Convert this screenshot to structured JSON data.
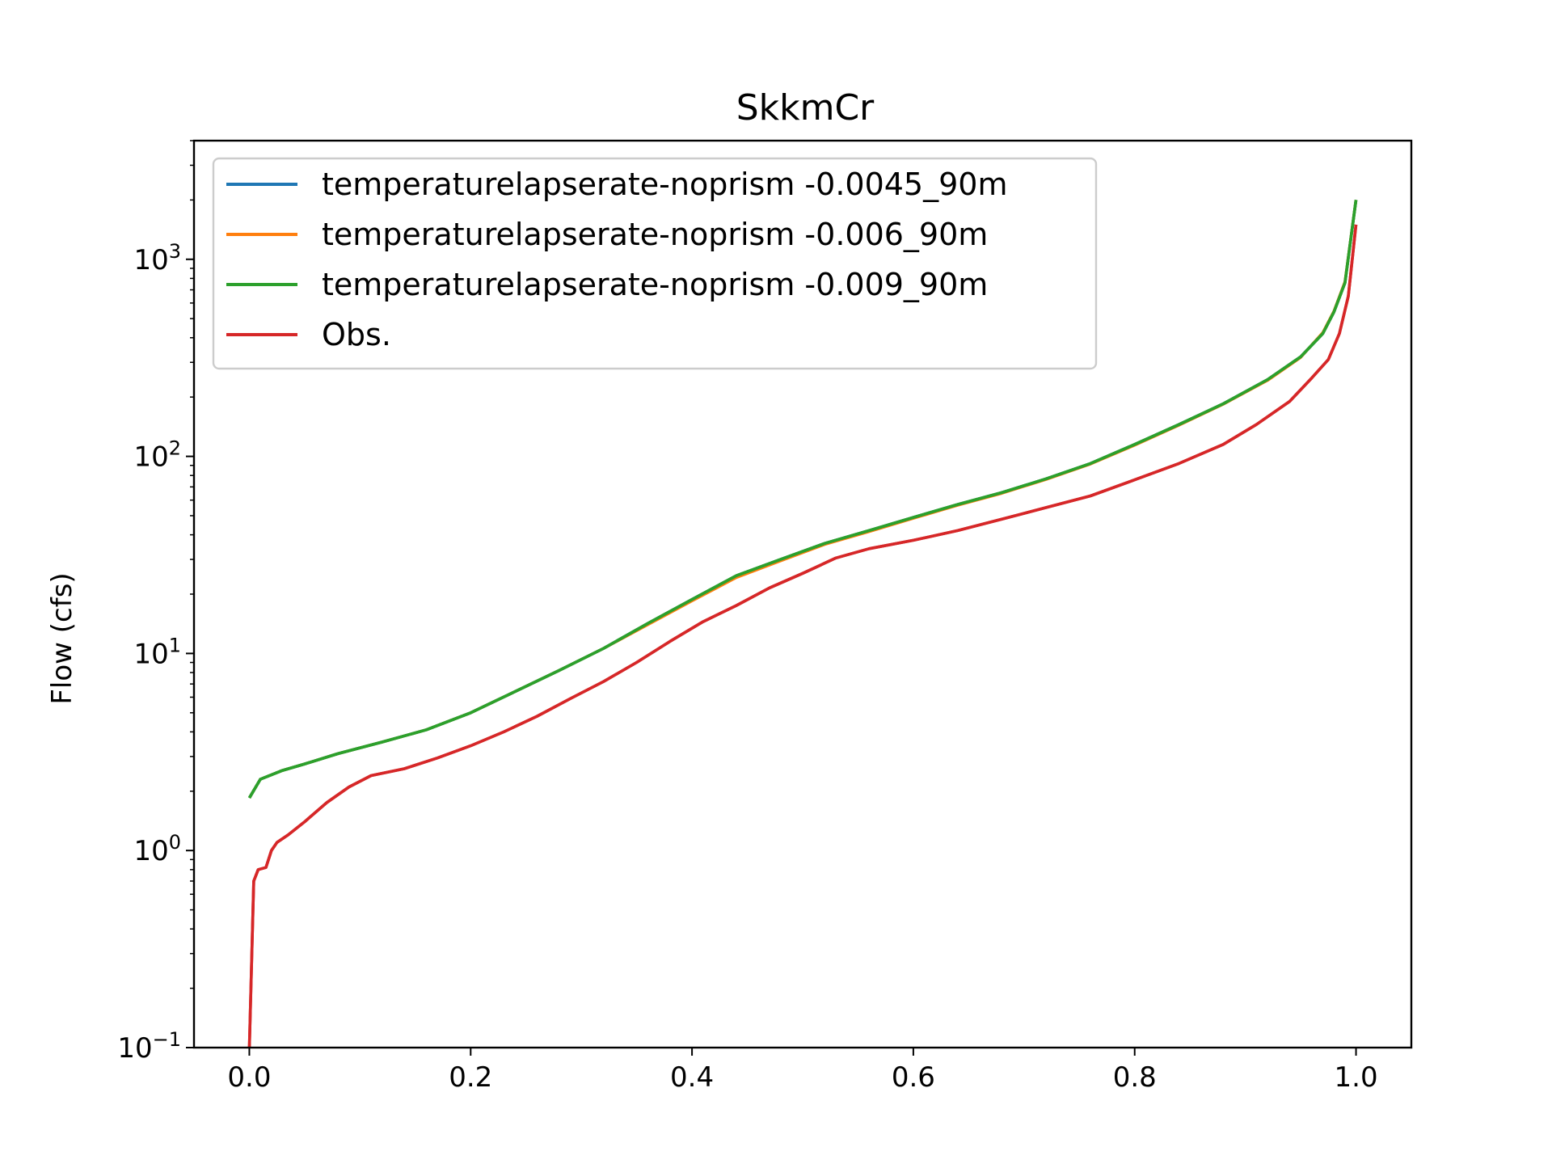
{
  "chart_data": {
    "type": "line",
    "title": "SkkmCr",
    "xlabel": "",
    "ylabel": "Flow (cfs)",
    "xlim": [
      -0.05,
      1.05
    ],
    "ylim": [
      0.1,
      4000
    ],
    "yscale": "log",
    "grid": false,
    "legend_position": "top-left",
    "x_ticks": [
      {
        "value": 0.0,
        "label": "0.0"
      },
      {
        "value": 0.2,
        "label": "0.2"
      },
      {
        "value": 0.4,
        "label": "0.4"
      },
      {
        "value": 0.6,
        "label": "0.6"
      },
      {
        "value": 0.8,
        "label": "0.8"
      },
      {
        "value": 1.0,
        "label": "1.0"
      }
    ],
    "y_ticks": [
      {
        "value": 0.1,
        "base": "10",
        "exp": "−1"
      },
      {
        "value": 1,
        "base": "10",
        "exp": "0"
      },
      {
        "value": 10,
        "base": "10",
        "exp": "1"
      },
      {
        "value": 100,
        "base": "10",
        "exp": "2"
      },
      {
        "value": 1000,
        "base": "10",
        "exp": "3"
      }
    ],
    "series": [
      {
        "name": "temperaturelapserate-noprism -0.0045_90m",
        "color": "#1f77b4",
        "x": [
          0.0,
          0.01,
          0.03,
          0.05,
          0.08,
          0.12,
          0.16,
          0.2,
          0.24,
          0.28,
          0.32,
          0.36,
          0.4,
          0.44,
          0.48,
          0.52,
          0.56,
          0.6,
          0.64,
          0.68,
          0.72,
          0.76,
          0.8,
          0.84,
          0.88,
          0.92,
          0.95,
          0.97,
          0.98,
          0.99,
          1.0
        ],
        "y": [
          1.85,
          2.3,
          2.55,
          2.75,
          3.1,
          3.55,
          4.1,
          5.0,
          6.4,
          8.2,
          10.6,
          14.2,
          18.8,
          24.8,
          30.0,
          36.2,
          42.0,
          49.0,
          57.0,
          65.5,
          77.0,
          92.0,
          115.0,
          145.0,
          185.0,
          245.0,
          320.0,
          420.0,
          540.0,
          760.0,
          2000.0
        ]
      },
      {
        "name": "temperaturelapserate-noprism -0.006_90m",
        "color": "#ff7f0e",
        "x": [
          0.0,
          0.01,
          0.03,
          0.05,
          0.08,
          0.12,
          0.16,
          0.2,
          0.24,
          0.28,
          0.32,
          0.36,
          0.4,
          0.44,
          0.48,
          0.52,
          0.56,
          0.6,
          0.64,
          0.68,
          0.72,
          0.76,
          0.8,
          0.84,
          0.88,
          0.92,
          0.95,
          0.97,
          0.98,
          0.99,
          1.0
        ],
        "y": [
          1.85,
          2.3,
          2.55,
          2.75,
          3.1,
          3.55,
          4.1,
          5.0,
          6.4,
          8.2,
          10.6,
          14.0,
          18.5,
          24.3,
          29.5,
          35.8,
          41.5,
          48.5,
          56.5,
          65.0,
          76.5,
          91.5,
          114.0,
          144.0,
          184.0,
          243.0,
          318.0,
          425.0,
          545.0,
          770.0,
          2000.0
        ]
      },
      {
        "name": "temperaturelapserate-noprism -0.009_90m",
        "color": "#2ca02c",
        "x": [
          0.0,
          0.01,
          0.03,
          0.05,
          0.08,
          0.12,
          0.16,
          0.2,
          0.24,
          0.28,
          0.32,
          0.36,
          0.4,
          0.44,
          0.48,
          0.52,
          0.56,
          0.6,
          0.64,
          0.68,
          0.72,
          0.76,
          0.8,
          0.84,
          0.88,
          0.92,
          0.95,
          0.97,
          0.98,
          0.99,
          1.0
        ],
        "y": [
          1.85,
          2.3,
          2.55,
          2.75,
          3.1,
          3.55,
          4.1,
          5.0,
          6.4,
          8.2,
          10.6,
          14.2,
          18.8,
          24.8,
          30.0,
          36.2,
          42.0,
          49.0,
          57.0,
          65.5,
          77.0,
          92.0,
          115.0,
          145.0,
          185.0,
          245.0,
          320.0,
          420.0,
          540.0,
          760.0,
          2000.0
        ]
      },
      {
        "name": "Obs.",
        "color": "#d62728",
        "x": [
          0.0,
          0.004,
          0.008,
          0.015,
          0.02,
          0.025,
          0.035,
          0.05,
          0.07,
          0.09,
          0.11,
          0.14,
          0.17,
          0.2,
          0.23,
          0.26,
          0.29,
          0.32,
          0.35,
          0.38,
          0.41,
          0.44,
          0.47,
          0.5,
          0.53,
          0.56,
          0.6,
          0.64,
          0.68,
          0.72,
          0.76,
          0.8,
          0.84,
          0.88,
          0.91,
          0.94,
          0.96,
          0.975,
          0.985,
          0.993,
          1.0
        ],
        "y": [
          0.1,
          0.7,
          0.8,
          0.82,
          1.0,
          1.1,
          1.2,
          1.4,
          1.75,
          2.1,
          2.4,
          2.6,
          2.95,
          3.4,
          4.0,
          4.8,
          5.9,
          7.2,
          9.0,
          11.5,
          14.5,
          17.5,
          21.5,
          25.5,
          30.5,
          34.0,
          37.5,
          42.0,
          48.0,
          55.0,
          63.0,
          76.0,
          92.0,
          115.0,
          145.0,
          190.0,
          250.0,
          310.0,
          420.0,
          650.0,
          1500.0
        ]
      }
    ]
  }
}
